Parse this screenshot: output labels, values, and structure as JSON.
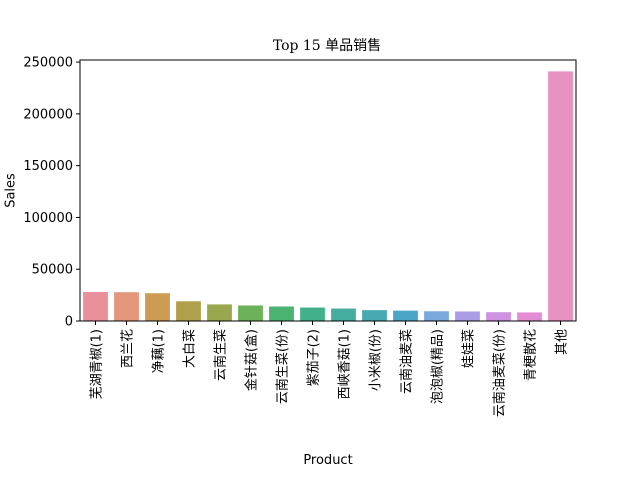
{
  "chart_data": {
    "type": "bar",
    "title": "Top 15 单品销售",
    "xlabel": "Product",
    "ylabel": "Sales",
    "ylim": [
      0,
      252000
    ],
    "yticks": [
      0,
      50000,
      100000,
      150000,
      200000,
      250000
    ],
    "ytick_labels": [
      "0",
      "50000",
      "100000",
      "150000",
      "200000",
      "250000"
    ],
    "grid": false,
    "categories": [
      "芜湖青椒(1)",
      "西兰花",
      "净藕(1)",
      "大白菜",
      "云南生菜",
      "金针菇(盒)",
      "云南生菜(份)",
      "紫茄子(2)",
      "西峡香菇(1)",
      "小米椒(份)",
      "云南油麦菜",
      "泡泡椒(精品)",
      "娃娃菜",
      "云南油麦菜(份)",
      "青梗散花",
      "其他"
    ],
    "values": [
      28000,
      27800,
      26800,
      19000,
      16000,
      15000,
      14000,
      13000,
      12000,
      10500,
      10000,
      9400,
      9200,
      8500,
      8300,
      241000
    ],
    "colors": [
      "#e8919a",
      "#e3967a",
      "#cd9c52",
      "#b0a04a",
      "#99a84c",
      "#6cb25a",
      "#4ab371",
      "#43b08c",
      "#45aca0",
      "#49a9b2",
      "#4aa5c7",
      "#7aa9e0",
      "#ac9ce8",
      "#cf92e2",
      "#e38ed3",
      "#e892c2"
    ]
  }
}
